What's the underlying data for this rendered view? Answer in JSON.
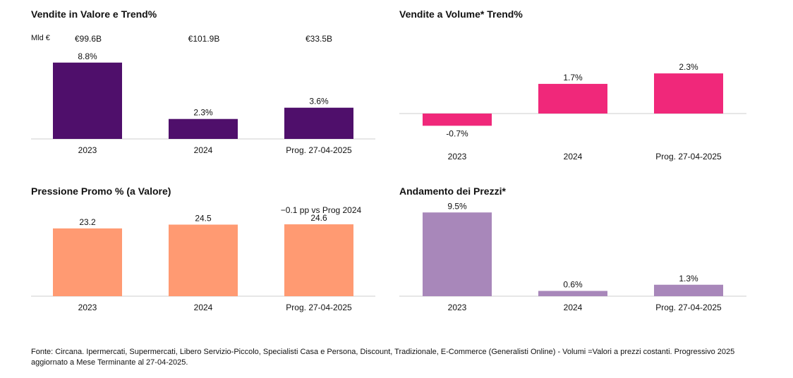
{
  "chart_data": [
    {
      "id": "valore",
      "type": "bar",
      "title": "Vendite in Valore e Trend%",
      "unit_label": "Mld €",
      "totals": [
        "€99.6B",
        "€101.9B",
        "€33.5B"
      ],
      "categories": [
        "2023",
        "2024",
        "Prog. 27-04-2025"
      ],
      "values": [
        8.8,
        2.3,
        3.6
      ],
      "value_labels": [
        "8.8%",
        "2.3%",
        "3.6%"
      ],
      "ylim": [
        0,
        10
      ],
      "color": "#4f0f6b"
    },
    {
      "id": "volume",
      "type": "bar",
      "title": "Vendite a Volume* Trend%",
      "categories": [
        "2023",
        "2024",
        "Prog. 27-04-2025"
      ],
      "values": [
        -0.7,
        1.7,
        2.3
      ],
      "value_labels": [
        "-0.7%",
        "1.7%",
        "2.3%"
      ],
      "ylim": [
        -1.5,
        4
      ],
      "color": "#f0287a"
    },
    {
      "id": "promo",
      "type": "bar",
      "title": "Pressione Promo % (a Valore)",
      "note": "−0.1 pp vs Prog 2024",
      "categories": [
        "2023",
        "2024",
        "Prog. 27-04-2025"
      ],
      "values": [
        23.2,
        24.5,
        24.6
      ],
      "value_labels": [
        "23.2",
        "24.5",
        "24.6"
      ],
      "ylim": [
        0,
        35
      ],
      "color": "#ff9a72"
    },
    {
      "id": "prezzi",
      "type": "bar",
      "title": "Andamento dei Prezzi*",
      "categories": [
        "2023",
        "2024",
        "Prog. 27-04-2025"
      ],
      "values": [
        9.5,
        0.6,
        1.3
      ],
      "value_labels": [
        "9.5%",
        "0.6%",
        "1.3%"
      ],
      "ylim": [
        0,
        12
      ],
      "color": "#a887ba"
    }
  ],
  "footer": "Fonte: Circana. Ipermercati, Supermercati, Libero Servizio-Piccolo, Specialisti Casa e Persona, Discount, Tradizionale, E-Commerce (Generalisti Online) - Volumi =Valori a prezzi costanti. Progressivo 2025 aggiornato a Mese Terminante al 27-04-2025."
}
